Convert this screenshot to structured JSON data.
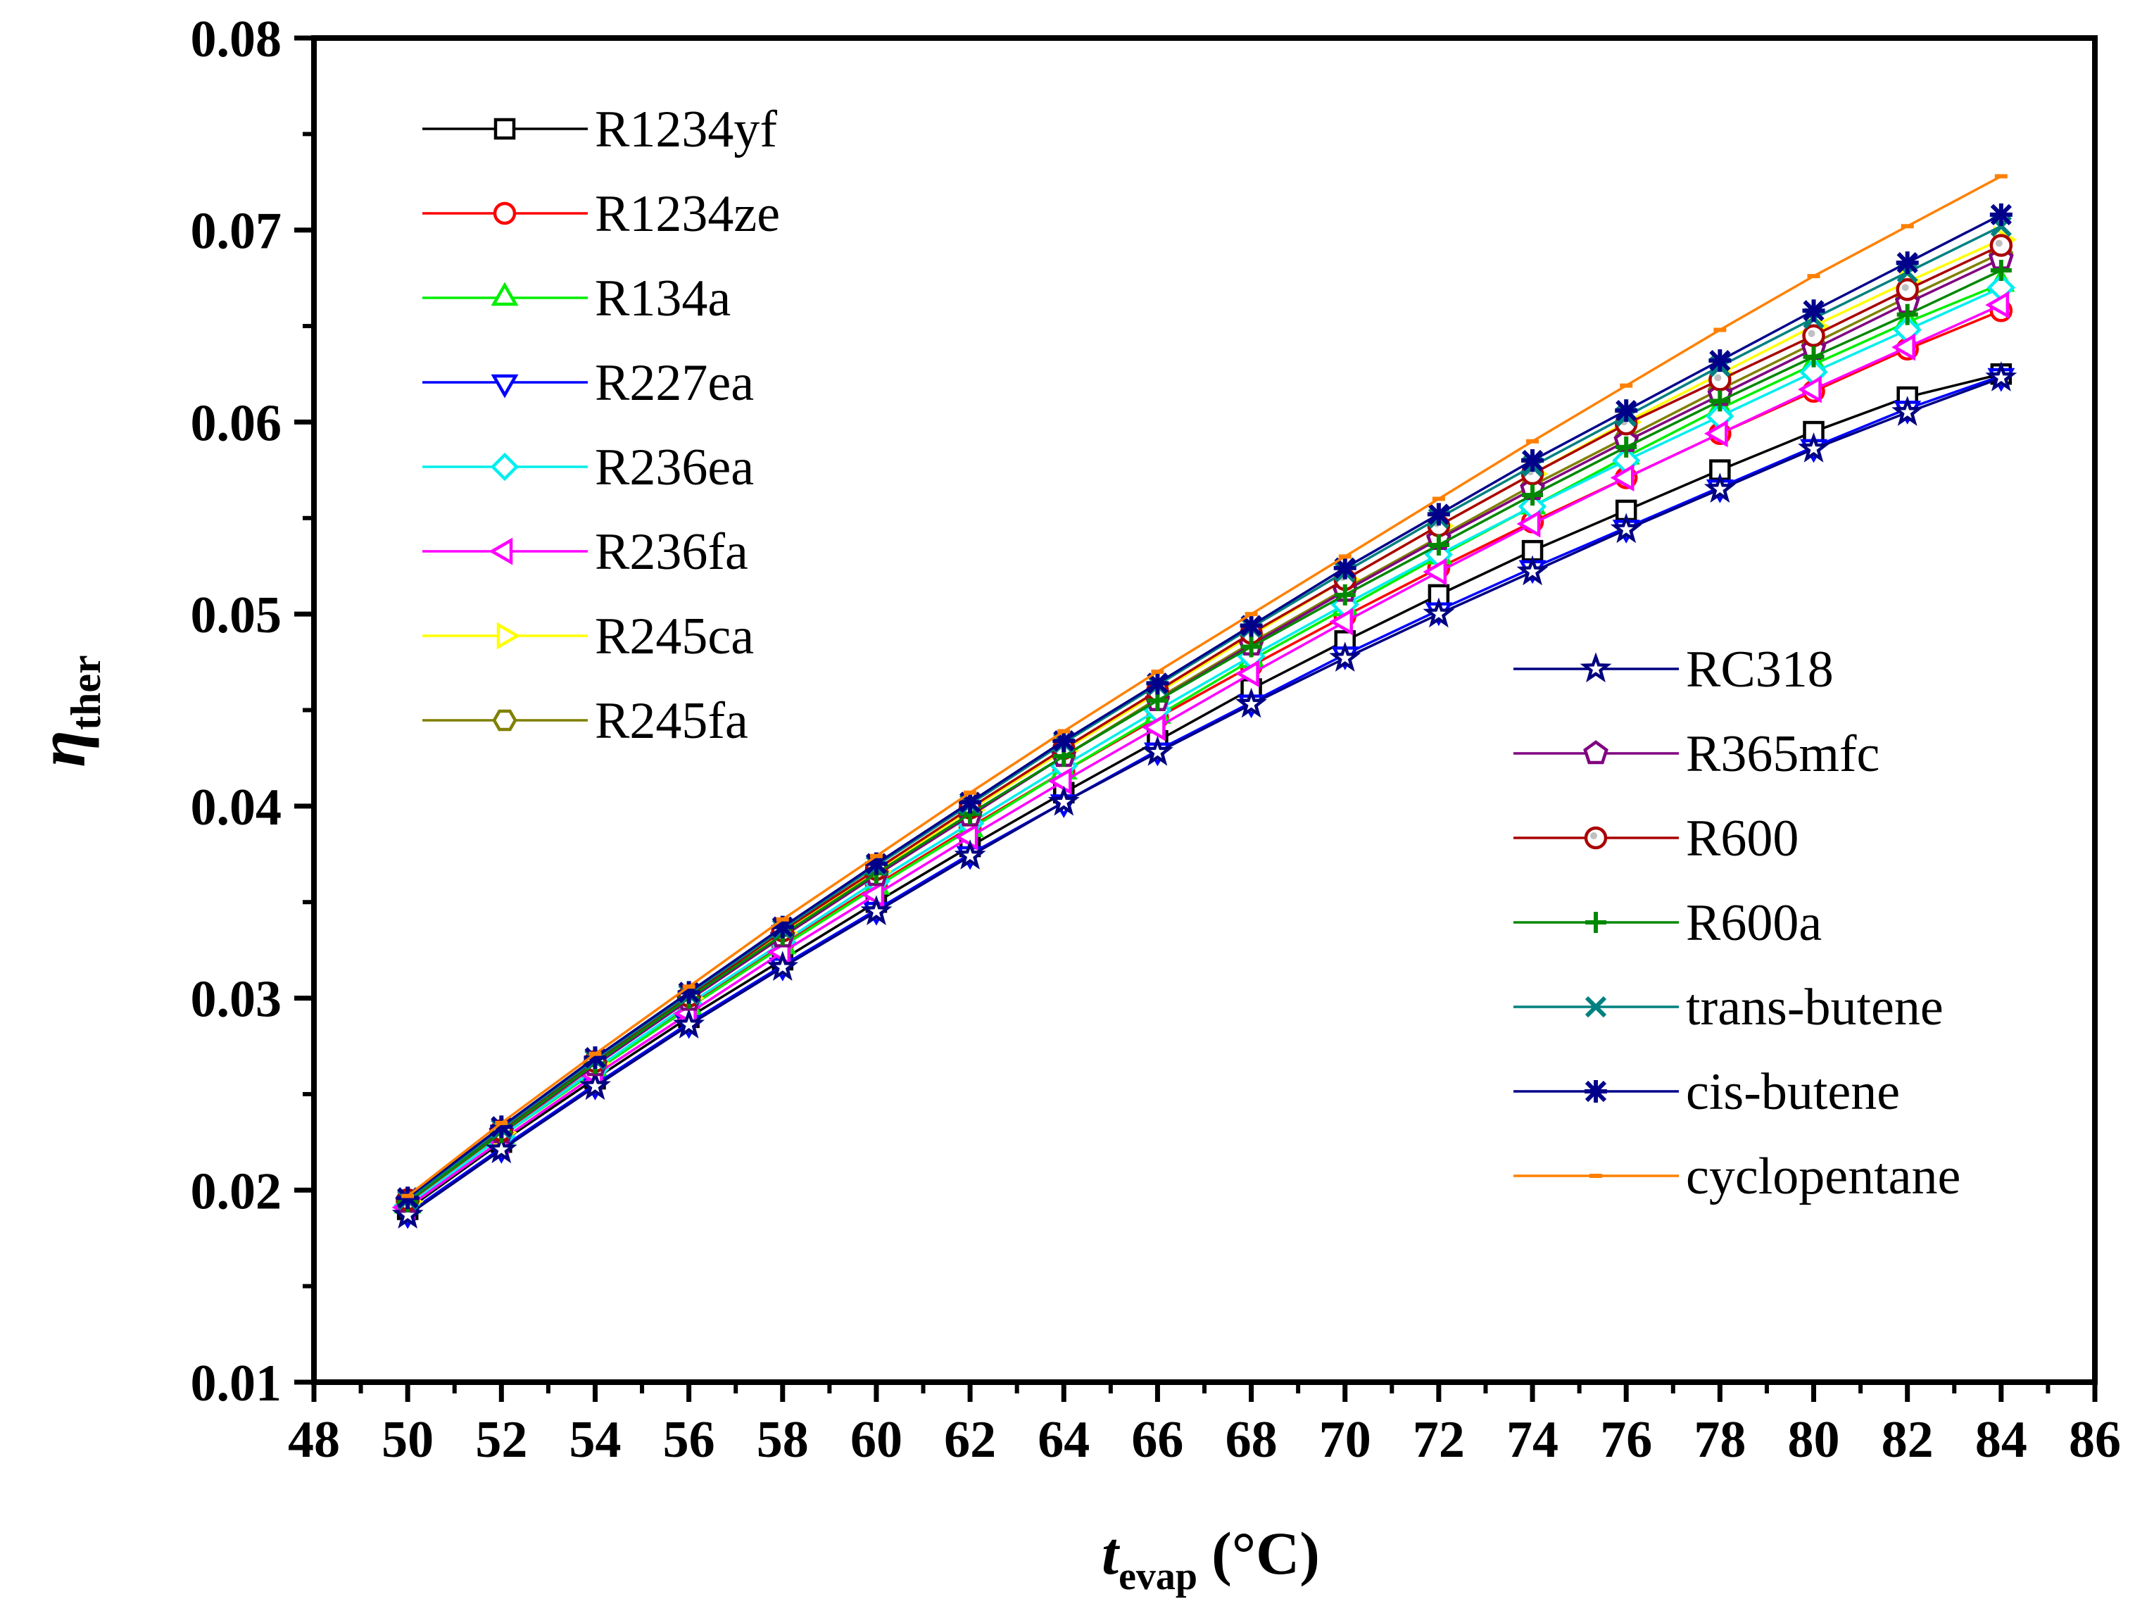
{
  "chart_data": {
    "type": "line",
    "title": "",
    "xlabel": {
      "main": "t",
      "sub": "evap",
      "unit": "(°C)"
    },
    "ylabel": {
      "main": "η",
      "sub": "ther"
    },
    "xlim": [
      48,
      86
    ],
    "ylim": [
      0.01,
      0.08
    ],
    "x_ticks": [
      "48",
      "50",
      "52",
      "54",
      "56",
      "58",
      "60",
      "62",
      "64",
      "66",
      "68",
      "70",
      "72",
      "74",
      "76",
      "78",
      "80",
      "82",
      "84",
      "86"
    ],
    "y_ticks": [
      "0.01",
      "0.02",
      "0.03",
      "0.04",
      "0.05",
      "0.06",
      "0.07",
      "0.08"
    ],
    "grid": false,
    "x": [
      50,
      52,
      54,
      56,
      58,
      60,
      62,
      64,
      66,
      68,
      70,
      72,
      74,
      76,
      78,
      80,
      82,
      84
    ],
    "series": [
      {
        "name": "R1234yf",
        "color": "#000000",
        "marker": "square",
        "legend_group": 0,
        "values": [
          0.019,
          0.0225,
          0.0258,
          0.029,
          0.032,
          0.035,
          0.0379,
          0.0407,
          0.0434,
          0.0461,
          0.0486,
          0.051,
          0.0533,
          0.0554,
          0.0575,
          0.0595,
          0.0613,
          0.0625
        ]
      },
      {
        "name": "R1234ze",
        "color": "#ff0000",
        "marker": "circle",
        "legend_group": 0,
        "values": [
          0.0193,
          0.0229,
          0.0263,
          0.0296,
          0.0328,
          0.0359,
          0.0389,
          0.0418,
          0.0446,
          0.0473,
          0.0499,
          0.0524,
          0.0548,
          0.0571,
          0.0594,
          0.0616,
          0.0638,
          0.0658
        ]
      },
      {
        "name": "R134a",
        "color": "#00ee00",
        "marker": "triangle-up",
        "legend_group": 0,
        "values": [
          0.0192,
          0.0228,
          0.0262,
          0.0295,
          0.0327,
          0.0358,
          0.0388,
          0.0418,
          0.0447,
          0.0476,
          0.0503,
          0.053,
          0.0556,
          0.0582,
          0.0607,
          0.063,
          0.0652,
          0.0672
        ]
      },
      {
        "name": "R227ea",
        "color": "#0000ff",
        "marker": "triangle-down",
        "legend_group": 0,
        "values": [
          0.0188,
          0.0222,
          0.0255,
          0.0287,
          0.0317,
          0.0346,
          0.0375,
          0.0402,
          0.0429,
          0.0454,
          0.0479,
          0.0502,
          0.0524,
          0.0545,
          0.0566,
          0.0587,
          0.0607,
          0.0624
        ]
      },
      {
        "name": "R236ea",
        "color": "#00eeee",
        "marker": "diamond",
        "legend_group": 0,
        "values": [
          0.0192,
          0.0228,
          0.0263,
          0.0297,
          0.0329,
          0.0361,
          0.0391,
          0.0421,
          0.045,
          0.0478,
          0.0505,
          0.0531,
          0.0556,
          0.058,
          0.0603,
          0.0626,
          0.0648,
          0.067
        ]
      },
      {
        "name": "R236fa",
        "color": "#ff00ff",
        "marker": "triangle-left",
        "legend_group": 0,
        "values": [
          0.0191,
          0.0226,
          0.026,
          0.0292,
          0.0324,
          0.0354,
          0.0384,
          0.0413,
          0.0441,
          0.0469,
          0.0496,
          0.0522,
          0.0547,
          0.0571,
          0.0594,
          0.0617,
          0.0639,
          0.0661
        ]
      },
      {
        "name": "R245ca",
        "color": "#ffff00",
        "marker": "triangle-right",
        "legend_group": 0,
        "values": [
          0.0194,
          0.023,
          0.0266,
          0.03,
          0.0334,
          0.0366,
          0.0398,
          0.0429,
          0.0459,
          0.0489,
          0.0518,
          0.0546,
          0.0573,
          0.06,
          0.0625,
          0.065,
          0.0673,
          0.0695
        ]
      },
      {
        "name": "R245fa",
        "color": "#808000",
        "marker": "hexagon",
        "legend_group": 0,
        "values": [
          0.0194,
          0.023,
          0.0265,
          0.0299,
          0.0332,
          0.0364,
          0.0395,
          0.0426,
          0.0456,
          0.0485,
          0.0513,
          0.054,
          0.0567,
          0.0592,
          0.0617,
          0.0641,
          0.0665,
          0.0688
        ]
      },
      {
        "name": "RC318",
        "color": "#000080",
        "marker": "star",
        "legend_group": 1,
        "values": [
          0.0187,
          0.0221,
          0.0254,
          0.0286,
          0.0316,
          0.0345,
          0.0374,
          0.0402,
          0.0428,
          0.0453,
          0.0477,
          0.05,
          0.0522,
          0.0544,
          0.0565,
          0.0586,
          0.0605,
          0.0623
        ]
      },
      {
        "name": "R365mfc",
        "color": "#800080",
        "marker": "pentagon",
        "legend_group": 1,
        "values": [
          0.0194,
          0.023,
          0.0265,
          0.0299,
          0.0332,
          0.0364,
          0.0395,
          0.0426,
          0.0455,
          0.0484,
          0.0512,
          0.0539,
          0.0565,
          0.059,
          0.0614,
          0.0638,
          0.0662,
          0.0685
        ]
      },
      {
        "name": "R600",
        "color": "#aa0000",
        "marker": "circle-dot",
        "legend_group": 1,
        "values": [
          0.0195,
          0.0231,
          0.0267,
          0.0301,
          0.0335,
          0.0367,
          0.0399,
          0.043,
          0.046,
          0.049,
          0.0518,
          0.0546,
          0.0573,
          0.0599,
          0.0622,
          0.0645,
          0.0669,
          0.0692
        ]
      },
      {
        "name": "R600a",
        "color": "#008800",
        "marker": "plus",
        "legend_group": 1,
        "values": [
          0.0194,
          0.023,
          0.0266,
          0.03,
          0.0333,
          0.0365,
          0.0396,
          0.0426,
          0.0455,
          0.0483,
          0.051,
          0.0536,
          0.0562,
          0.0587,
          0.0611,
          0.0634,
          0.0656,
          0.0679
        ]
      },
      {
        "name": "trans-butene",
        "color": "#008080",
        "marker": "x",
        "legend_group": 1,
        "values": [
          0.0195,
          0.0232,
          0.0268,
          0.0302,
          0.0336,
          0.0369,
          0.0401,
          0.0433,
          0.0463,
          0.0493,
          0.0522,
          0.055,
          0.0577,
          0.0603,
          0.0629,
          0.0654,
          0.0678,
          0.0702
        ]
      },
      {
        "name": "cis-butene",
        "color": "#00008b",
        "marker": "asterisk",
        "legend_group": 1,
        "values": [
          0.0196,
          0.0233,
          0.0269,
          0.0303,
          0.0337,
          0.037,
          0.0402,
          0.0434,
          0.0464,
          0.0494,
          0.0524,
          0.0552,
          0.058,
          0.0606,
          0.0632,
          0.0658,
          0.0683,
          0.0708
        ]
      },
      {
        "name": "cyclopentane",
        "color": "#ff8000",
        "marker": "dash",
        "legend_group": 1,
        "values": [
          0.0197,
          0.0235,
          0.0271,
          0.0306,
          0.0341,
          0.0374,
          0.0407,
          0.0439,
          0.047,
          0.05,
          0.053,
          0.056,
          0.059,
          0.0619,
          0.0648,
          0.0676,
          0.0702,
          0.0728
        ]
      }
    ]
  }
}
